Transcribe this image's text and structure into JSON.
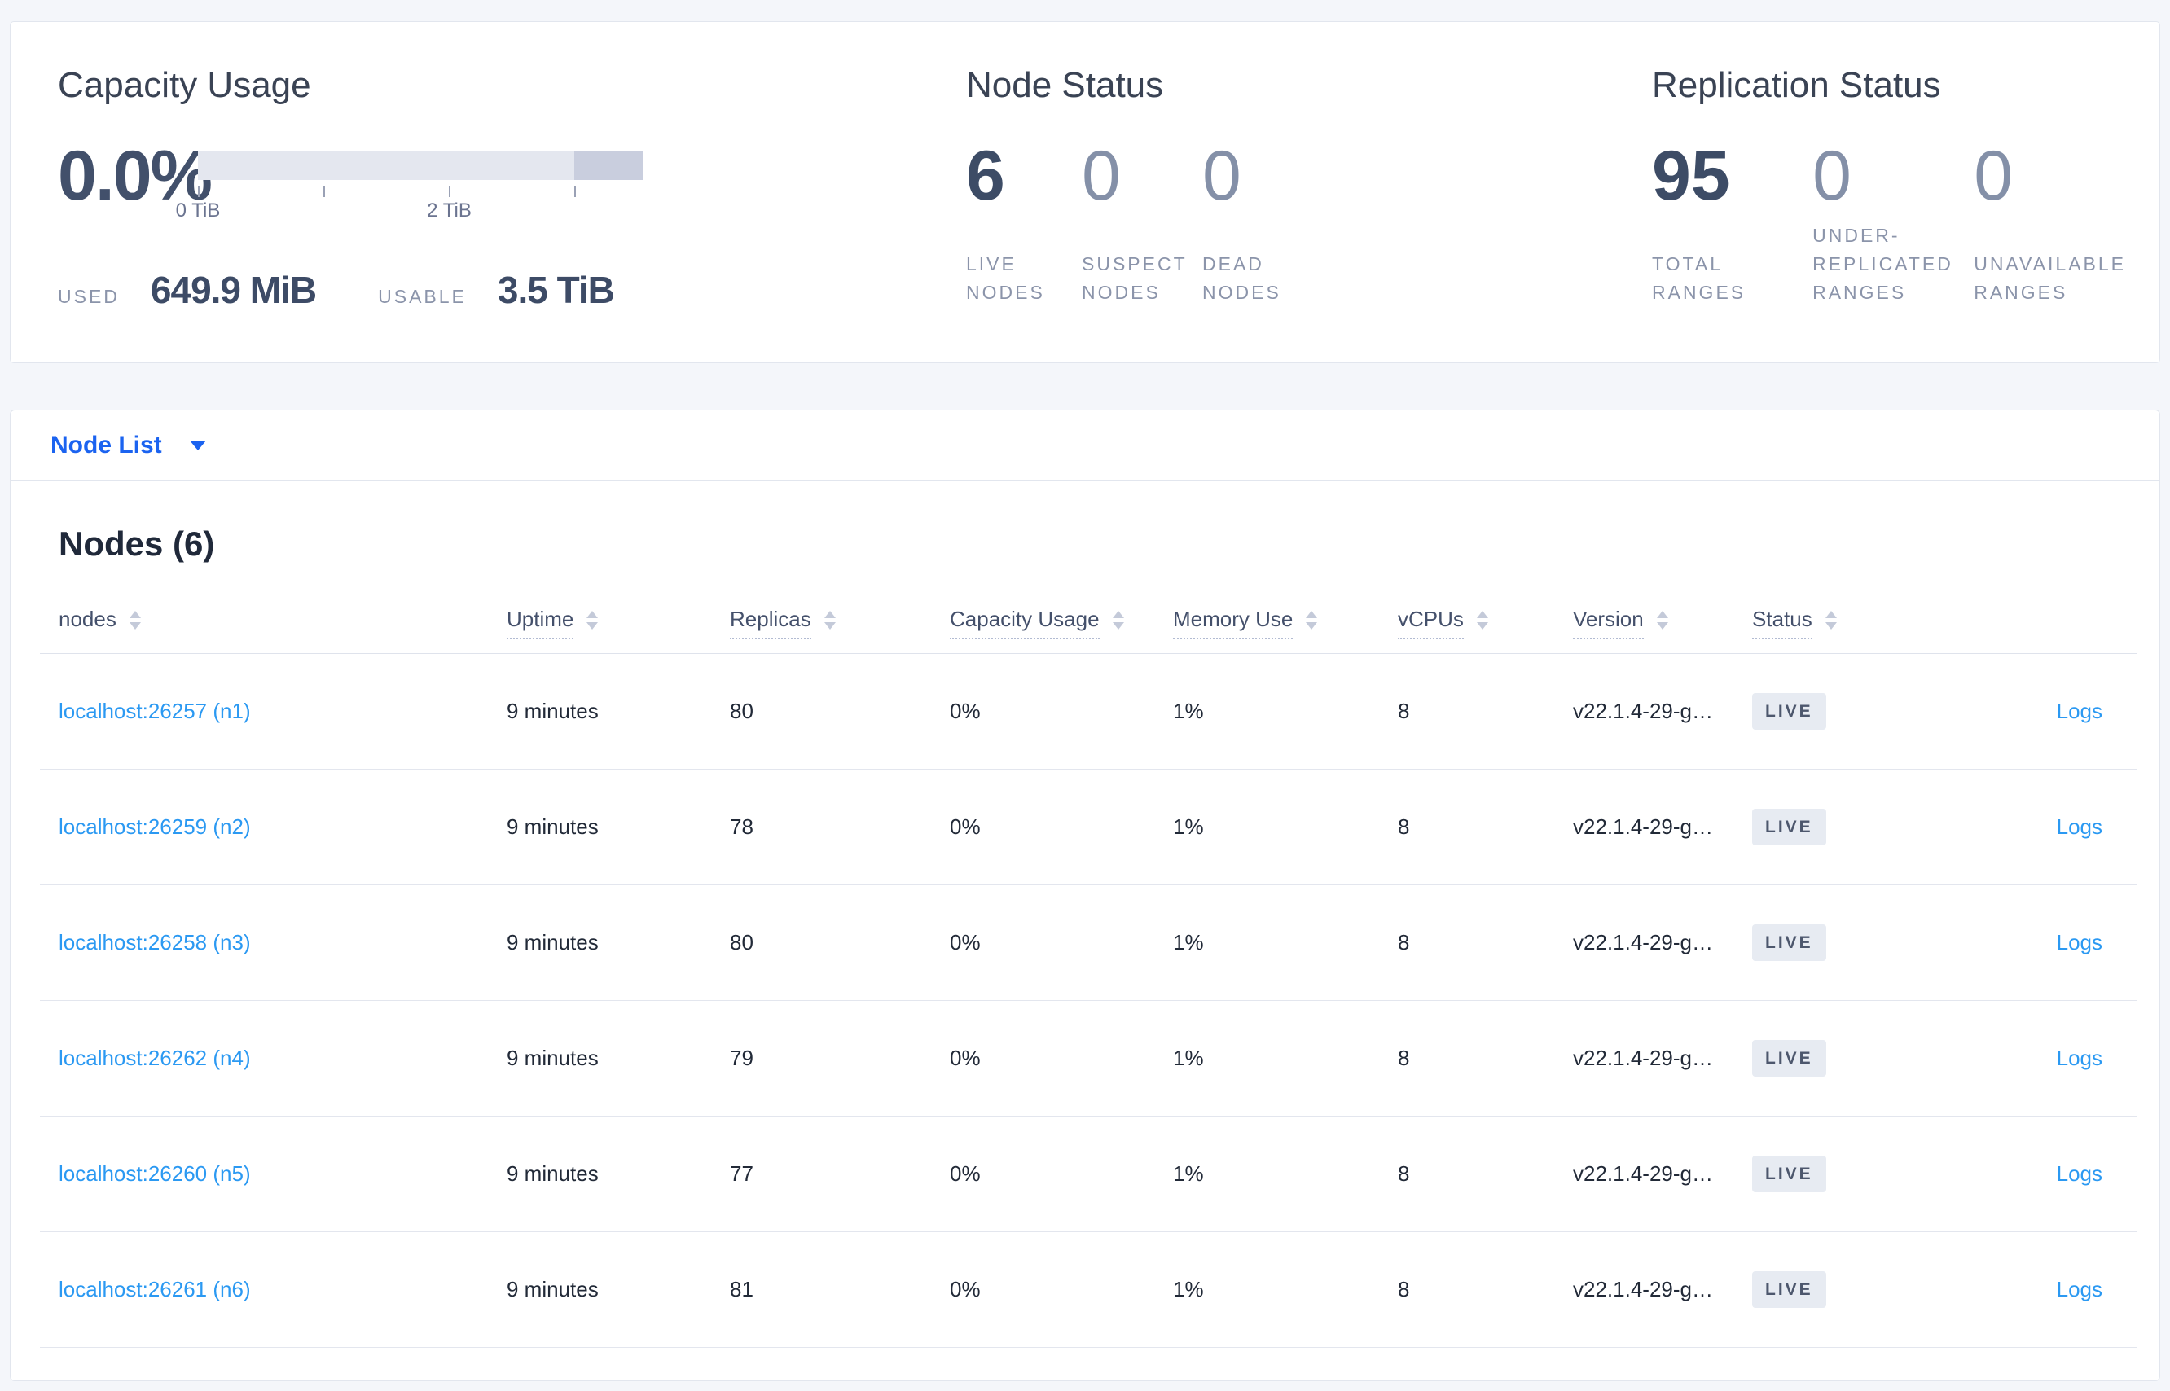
{
  "summary": {
    "capacity": {
      "title": "Capacity Usage",
      "percent": "0.0%",
      "tick_labels": [
        "0 TiB",
        "2 TiB"
      ],
      "used_label": "USED",
      "used_value": "649.9 MiB",
      "usable_label": "USABLE",
      "usable_value": "3.5 TiB"
    },
    "node_status": {
      "title": "Node Status",
      "stats": [
        {
          "value": "6",
          "label": "LIVE NODES",
          "emphasis": "strong"
        },
        {
          "value": "0",
          "label": "SUSPECT NODES",
          "emphasis": "muted"
        },
        {
          "value": "0",
          "label": "DEAD NODES",
          "emphasis": "muted"
        }
      ]
    },
    "replication": {
      "title": "Replication Status",
      "stats": [
        {
          "value": "95",
          "label": "TOTAL RANGES",
          "emphasis": "strong"
        },
        {
          "value": "0",
          "label": "UNDER-REPLICATED RANGES",
          "emphasis": "muted"
        },
        {
          "value": "0",
          "label": "UNAVAILABLE RANGES",
          "emphasis": "muted"
        }
      ]
    }
  },
  "view_selector": {
    "label": "Node List"
  },
  "table": {
    "title": "Nodes (6)",
    "columns": [
      {
        "label": "nodes",
        "dotted": false,
        "sortable": true
      },
      {
        "label": "Uptime",
        "dotted": true,
        "sortable": true
      },
      {
        "label": "Replicas",
        "dotted": true,
        "sortable": true
      },
      {
        "label": "Capacity Usage",
        "dotted": true,
        "sortable": true
      },
      {
        "label": "Memory Use",
        "dotted": true,
        "sortable": true
      },
      {
        "label": "vCPUs",
        "dotted": true,
        "sortable": true
      },
      {
        "label": "Version",
        "dotted": true,
        "sortable": true
      },
      {
        "label": "Status",
        "dotted": true,
        "sortable": true
      },
      {
        "label": "",
        "dotted": false,
        "sortable": false
      }
    ],
    "rows": [
      {
        "address": "localhost:26257 (n1)",
        "uptime": "9 minutes",
        "replicas": "80",
        "capacity_usage": "0%",
        "memory_use": "1%",
        "vcpus": "8",
        "version": "v22.1.4-29-g…",
        "status": "LIVE",
        "logs": "Logs"
      },
      {
        "address": "localhost:26259 (n2)",
        "uptime": "9 minutes",
        "replicas": "78",
        "capacity_usage": "0%",
        "memory_use": "1%",
        "vcpus": "8",
        "version": "v22.1.4-29-g…",
        "status": "LIVE",
        "logs": "Logs"
      },
      {
        "address": "localhost:26258 (n3)",
        "uptime": "9 minutes",
        "replicas": "80",
        "capacity_usage": "0%",
        "memory_use": "1%",
        "vcpus": "8",
        "version": "v22.1.4-29-g…",
        "status": "LIVE",
        "logs": "Logs"
      },
      {
        "address": "localhost:26262 (n4)",
        "uptime": "9 minutes",
        "replicas": "79",
        "capacity_usage": "0%",
        "memory_use": "1%",
        "vcpus": "8",
        "version": "v22.1.4-29-g…",
        "status": "LIVE",
        "logs": "Logs"
      },
      {
        "address": "localhost:26260 (n5)",
        "uptime": "9 minutes",
        "replicas": "77",
        "capacity_usage": "0%",
        "memory_use": "1%",
        "vcpus": "8",
        "version": "v22.1.4-29-g…",
        "status": "LIVE",
        "logs": "Logs"
      },
      {
        "address": "localhost:26261 (n6)",
        "uptime": "9 minutes",
        "replicas": "81",
        "capacity_usage": "0%",
        "memory_use": "1%",
        "vcpus": "8",
        "version": "v22.1.4-29-g…",
        "status": "LIVE",
        "logs": "Logs"
      }
    ]
  },
  "colors": {
    "link_blue": "#2b99f2",
    "selector_blue": "#1b63f0",
    "bar_track": "#e4e7ef",
    "bar_segment": "#c9cede",
    "badge_bg": "#e7ebf2",
    "page_bg": "#f4f6fa"
  }
}
